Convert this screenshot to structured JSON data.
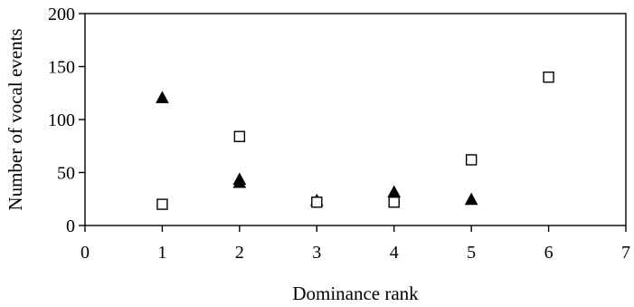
{
  "chart_data": {
    "type": "scatter",
    "title": "",
    "xlabel": "Dominance rank",
    "ylabel": "Number of vocal events",
    "xlim": [
      0,
      7
    ],
    "ylim": [
      0,
      200
    ],
    "x_ticks": [
      0,
      1,
      2,
      3,
      4,
      5,
      6,
      7
    ],
    "y_ticks": [
      0,
      50,
      100,
      150,
      200
    ],
    "x_tick_labels": [
      "0",
      "1",
      "2",
      "3",
      "4",
      "5",
      "6",
      "7"
    ],
    "y_tick_labels": [
      "0",
      "50",
      "100",
      "150",
      "200"
    ],
    "grid": false,
    "legend": "none",
    "series": [
      {
        "marker": "filled-triangle",
        "color": "#000000",
        "points": [
          {
            "x": 1,
            "y": 120
          },
          {
            "x": 2,
            "y": 40
          },
          {
            "x": 2,
            "y": 43
          },
          {
            "x": 3,
            "y": 23
          },
          {
            "x": 4,
            "y": 31
          },
          {
            "x": 5,
            "y": 24
          }
        ]
      },
      {
        "marker": "open-square",
        "color": "#000000",
        "points": [
          {
            "x": 1,
            "y": 20
          },
          {
            "x": 2,
            "y": 84
          },
          {
            "x": 3,
            "y": 22
          },
          {
            "x": 4,
            "y": 22
          },
          {
            "x": 5,
            "y": 62
          },
          {
            "x": 6,
            "y": 140
          }
        ]
      }
    ]
  }
}
